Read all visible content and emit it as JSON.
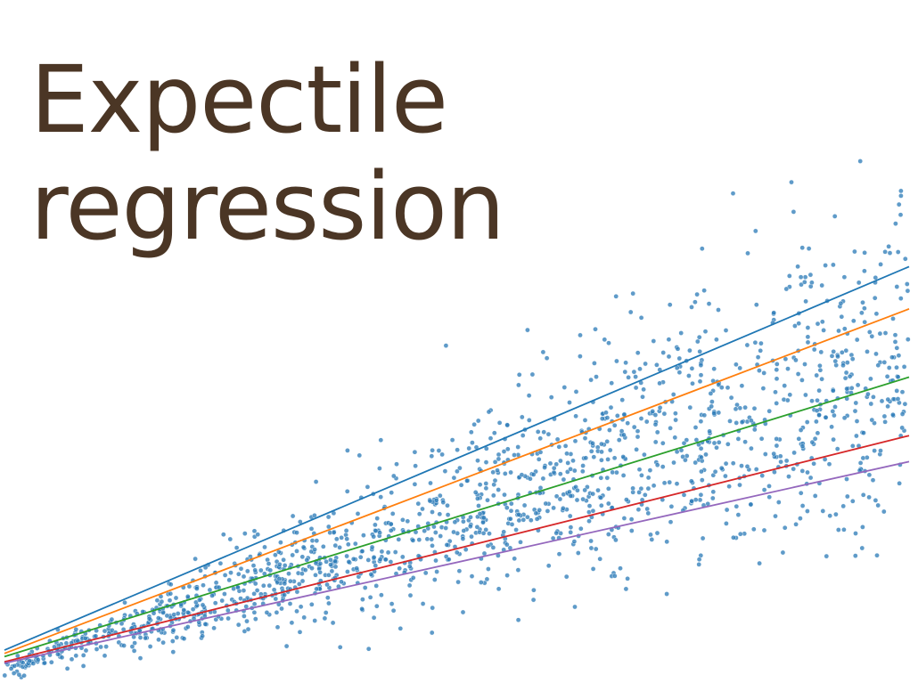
{
  "title": {
    "line1": "Expectile",
    "line2": "regression"
  },
  "chart_data": {
    "type": "scatter",
    "title": "Expectile regression",
    "xlabel": "",
    "ylabel": "",
    "xlim": [
      0,
      10
    ],
    "ylim": [
      0,
      10
    ],
    "grid": false,
    "axes_visible": false,
    "point_color": "#2a7ab7",
    "point_count": 1600,
    "points_generated": "procedural: y = x*(0.45 + 0.18*noise), heteroscedastic spread",
    "lines": [
      {
        "color": "#1f77b4",
        "x": [
          0,
          10
        ],
        "y": [
          0.3,
          6.2
        ]
      },
      {
        "color": "#ff7f0e",
        "x": [
          0,
          10
        ],
        "y": [
          0.25,
          5.55
        ]
      },
      {
        "color": "#2ca02c",
        "x": [
          0,
          10
        ],
        "y": [
          0.2,
          4.5
        ]
      },
      {
        "color": "#d62728",
        "x": [
          0,
          10
        ],
        "y": [
          0.12,
          3.6
        ]
      },
      {
        "color": "#9467bd",
        "x": [
          0,
          10
        ],
        "y": [
          0.1,
          3.2
        ]
      }
    ]
  }
}
